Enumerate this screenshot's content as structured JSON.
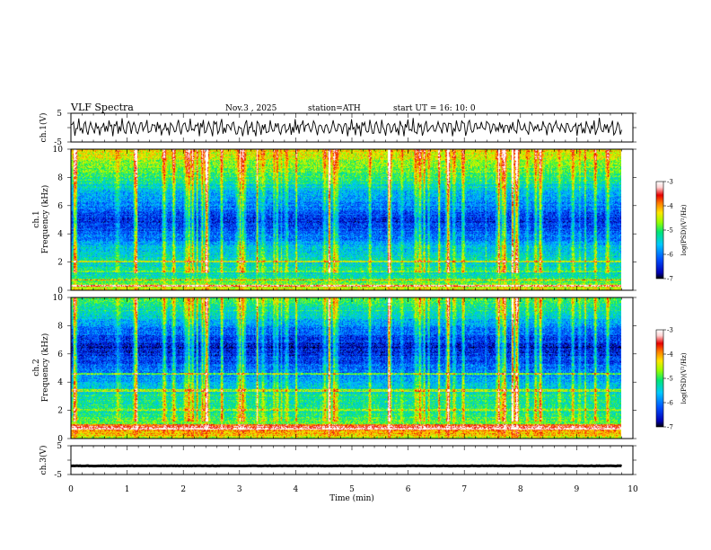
{
  "header": {
    "title": "VLF  Spectra",
    "date": "Nov.3  , 2025",
    "station": "station=ATH",
    "start_ut": "start  UT  =   16: 10: 0"
  },
  "chart_data": {
    "type": "spectrogram",
    "x": {
      "label": "Time  (min)",
      "range": [
        0,
        10
      ],
      "ticks": [
        "0",
        "1",
        "2",
        "3",
        "4",
        "5",
        "6",
        "7",
        "8",
        "9",
        "10"
      ],
      "data_end": 9.8
    },
    "panels": [
      {
        "name": "ch.1 waveform",
        "type": "line",
        "ylabel": "ch.1(V)",
        "ylim": [
          -5,
          5
        ],
        "yticks": [
          "5",
          "-5"
        ],
        "description": "noisy signal oscillating roughly between -2.5 V and +3 V"
      },
      {
        "name": "ch.1 spectrogram",
        "type": "heatmap",
        "ylabel": "ch.1\nFrequency  (kHz)",
        "ylim": [
          0,
          10
        ],
        "yticks": [
          "0",
          "2",
          "4",
          "6",
          "8",
          "10"
        ],
        "colorbar": {
          "label": "log(PSD)(V²/Hz)",
          "range": [
            -7,
            -3
          ],
          "ticks": [
            "-3",
            "-4",
            "-5",
            "-6",
            "-7"
          ]
        },
        "profile": [
          {
            "f": 0.0,
            "v": -4.3
          },
          {
            "f": 0.5,
            "v": -4.8
          },
          {
            "f": 1.0,
            "v": -5.3
          },
          {
            "f": 2.0,
            "v": -5.4
          },
          {
            "f": 3.0,
            "v": -5.6
          },
          {
            "f": 4.0,
            "v": -6.2
          },
          {
            "f": 5.0,
            "v": -6.4
          },
          {
            "f": 6.5,
            "v": -5.8
          },
          {
            "f": 8.0,
            "v": -5.1
          },
          {
            "f": 9.0,
            "v": -4.7
          },
          {
            "f": 10.0,
            "v": -4.3
          }
        ]
      },
      {
        "name": "ch.2 spectrogram",
        "type": "heatmap",
        "ylabel": "ch.2\nFrequency  (kHz)",
        "ylim": [
          0,
          10
        ],
        "yticks": [
          "0",
          "2",
          "4",
          "6",
          "8",
          "10"
        ],
        "colorbar": {
          "label": "log(PSD)(V²/Hz)",
          "range": [
            -7,
            -3
          ],
          "ticks": [
            "-3",
            "-4",
            "-5",
            "-6",
            "-7"
          ]
        },
        "profile": [
          {
            "f": 0.0,
            "v": -4.5
          },
          {
            "f": 0.6,
            "v": -3.9
          },
          {
            "f": 1.0,
            "v": -4.9
          },
          {
            "f": 2.0,
            "v": -5.2
          },
          {
            "f": 3.0,
            "v": -5.2
          },
          {
            "f": 4.0,
            "v": -5.7
          },
          {
            "f": 5.0,
            "v": -6.1
          },
          {
            "f": 6.5,
            "v": -6.6
          },
          {
            "f": 8.0,
            "v": -5.9
          },
          {
            "f": 9.0,
            "v": -5.3
          },
          {
            "f": 10.0,
            "v": -5.0
          }
        ]
      },
      {
        "name": "ch.3 waveform",
        "type": "line",
        "ylabel": "ch.3(V)",
        "ylim": [
          -5,
          5
        ],
        "yticks": [
          "5",
          "-5"
        ],
        "level": -2,
        "description": "nearly flat trace at about -2 V"
      }
    ]
  },
  "colors": {
    "colormap": [
      "#000000",
      "#0000b4",
      "#0050ff",
      "#00c8ff",
      "#00e676",
      "#96ff00",
      "#ffe600",
      "#ff7800",
      "#e60000",
      "#ffd2d2",
      "#ffffff"
    ]
  }
}
